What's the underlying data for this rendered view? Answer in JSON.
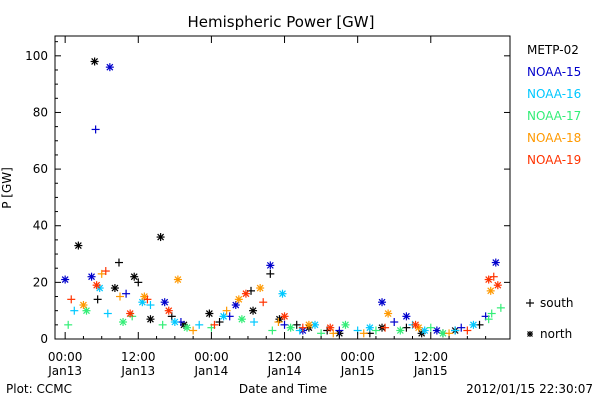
{
  "chart_data": {
    "type": "scatter",
    "title": "Hemispheric Power [GW]",
    "ylabel": "P [GW]",
    "xlabel": "Date and Time",
    "ylim": [
      0,
      107
    ],
    "xlim": [
      "2012-01-12T22:20",
      "2012-01-16T01:00"
    ],
    "y_ticks": [
      "0",
      "20",
      "40",
      "60",
      "80",
      "100"
    ],
    "x_ticks": [
      {
        "time": "00:00",
        "date": "Jan13"
      },
      {
        "time": "12:00",
        "date": "Jan13"
      },
      {
        "time": "00:00",
        "date": "Jan14"
      },
      {
        "time": "12:00",
        "date": "Jan14"
      },
      {
        "time": "00:00",
        "date": "Jan15"
      },
      {
        "time": "12:00",
        "date": "Jan15"
      }
    ],
    "marker_legend": [
      {
        "symbol": "+",
        "label": "south"
      },
      {
        "symbol": "*",
        "label": "north"
      }
    ],
    "series": [
      {
        "name": "METP-02",
        "color": "#000000",
        "north": [
          [
            "2012-01-13T04:50",
            98
          ],
          [
            "2012-01-13T02:10",
            33
          ],
          [
            "2012-01-13T15:40",
            36
          ],
          [
            "2012-01-13T11:20",
            22
          ],
          [
            "2012-01-13T08:10",
            18
          ],
          [
            "2012-01-13T14:00",
            7
          ],
          [
            "2012-01-13T19:30",
            5
          ],
          [
            "2012-01-13T23:40",
            9
          ],
          [
            "2012-01-14T06:50",
            10
          ],
          [
            "2012-01-14T11:10",
            7
          ],
          [
            "2012-01-14T16:00",
            4
          ],
          [
            "2012-01-14T21:00",
            2
          ],
          [
            "2012-01-15T04:00",
            4
          ],
          [
            "2012-01-15T10:30",
            2
          ],
          [
            "2012-01-15T16:00",
            3
          ]
        ],
        "south": [
          [
            "2012-01-13T08:50",
            27
          ],
          [
            "2012-01-13T12:00",
            20
          ],
          [
            "2012-01-13T05:20",
            14
          ],
          [
            "2012-01-13T17:30",
            8
          ],
          [
            "2012-01-14T01:20",
            6
          ],
          [
            "2012-01-14T06:30",
            17
          ],
          [
            "2012-01-14T09:40",
            23
          ],
          [
            "2012-01-14T14:00",
            5
          ],
          [
            "2012-01-14T19:00",
            3
          ],
          [
            "2012-01-15T02:00",
            2
          ],
          [
            "2012-01-15T08:00",
            4
          ],
          [
            "2012-01-15T14:00",
            2
          ],
          [
            "2012-01-15T20:00",
            5
          ]
        ]
      },
      {
        "name": "NOAA-15",
        "color": "#0000cc",
        "north": [
          [
            "2012-01-13T07:20",
            96
          ],
          [
            "2012-01-13T04:20",
            22
          ],
          [
            "2012-01-13T00:00",
            21
          ],
          [
            "2012-01-13T16:20",
            13
          ],
          [
            "2012-01-14T04:00",
            12
          ],
          [
            "2012-01-14T09:40",
            26
          ],
          [
            "2012-01-15T04:00",
            13
          ],
          [
            "2012-01-15T08:00",
            8
          ],
          [
            "2012-01-15T22:40",
            27
          ],
          [
            "2012-01-14T15:00",
            3
          ],
          [
            "2012-01-15T13:00",
            3
          ]
        ],
        "south": [
          [
            "2012-01-13T05:00",
            74
          ],
          [
            "2012-01-13T10:00",
            16
          ],
          [
            "2012-01-13T19:00",
            6
          ],
          [
            "2012-01-14T03:00",
            8
          ],
          [
            "2012-01-14T12:00",
            5
          ],
          [
            "2012-01-14T21:00",
            3
          ],
          [
            "2012-01-15T06:00",
            6
          ],
          [
            "2012-01-15T17:00",
            4
          ],
          [
            "2012-01-15T21:00",
            8
          ]
        ]
      },
      {
        "name": "NOAA-16",
        "color": "#00c8ff",
        "north": [
          [
            "2012-01-13T05:40",
            18
          ],
          [
            "2012-01-13T12:40",
            13
          ],
          [
            "2012-01-13T18:00",
            6
          ],
          [
            "2012-01-14T02:00",
            8
          ],
          [
            "2012-01-14T11:40",
            16
          ],
          [
            "2012-01-14T17:00",
            5
          ],
          [
            "2012-01-15T02:00",
            4
          ],
          [
            "2012-01-15T11:00",
            3
          ],
          [
            "2012-01-15T19:00",
            5
          ]
        ],
        "south": [
          [
            "2012-01-13T01:30",
            10
          ],
          [
            "2012-01-13T07:00",
            9
          ],
          [
            "2012-01-13T14:00",
            12
          ],
          [
            "2012-01-13T22:00",
            5
          ],
          [
            "2012-01-14T07:00",
            6
          ],
          [
            "2012-01-14T14:30",
            3
          ],
          [
            "2012-01-15T00:00",
            3
          ],
          [
            "2012-01-15T09:00",
            5
          ],
          [
            "2012-01-15T16:00",
            3
          ]
        ]
      },
      {
        "name": "NOAA-17",
        "color": "#33ee77",
        "north": [
          [
            "2012-01-13T03:30",
            10
          ],
          [
            "2012-01-13T09:30",
            6
          ],
          [
            "2012-01-13T20:00",
            4
          ],
          [
            "2012-01-14T05:00",
            7
          ],
          [
            "2012-01-14T13:00",
            4
          ],
          [
            "2012-01-14T22:00",
            5
          ],
          [
            "2012-01-15T07:00",
            3
          ],
          [
            "2012-01-15T14:00",
            2
          ]
        ],
        "south": [
          [
            "2012-01-13T00:30",
            5
          ],
          [
            "2012-01-13T11:00",
            8
          ],
          [
            "2012-01-13T16:00",
            5
          ],
          [
            "2012-01-14T00:00",
            4
          ],
          [
            "2012-01-14T10:00",
            3
          ],
          [
            "2012-01-14T18:00",
            2
          ],
          [
            "2012-01-15T03:00",
            3
          ],
          [
            "2012-01-15T12:00",
            4
          ],
          [
            "2012-01-15T22:00",
            9
          ],
          [
            "2012-01-15T23:30",
            11
          ],
          [
            "2012-01-15T21:30",
            7
          ]
        ]
      },
      {
        "name": "NOAA-18",
        "color": "#ff9900",
        "north": [
          [
            "2012-01-13T18:30",
            21
          ],
          [
            "2012-01-13T03:00",
            12
          ],
          [
            "2012-01-13T13:00",
            15
          ],
          [
            "2012-01-14T08:00",
            18
          ],
          [
            "2012-01-14T04:30",
            14
          ],
          [
            "2012-01-14T16:00",
            5
          ],
          [
            "2012-01-15T05:00",
            9
          ],
          [
            "2012-01-15T10:00",
            4
          ],
          [
            "2012-01-15T21:50",
            17
          ]
        ],
        "south": [
          [
            "2012-01-13T06:00",
            23
          ],
          [
            "2012-01-13T09:00",
            15
          ],
          [
            "2012-01-13T21:00",
            3
          ],
          [
            "2012-01-14T02:30",
            10
          ],
          [
            "2012-01-14T11:00",
            6
          ],
          [
            "2012-01-14T20:00",
            2
          ],
          [
            "2012-01-15T01:00",
            2
          ],
          [
            "2012-01-15T15:00",
            2
          ]
        ]
      },
      {
        "name": "NOAA-19",
        "color": "#ff3300",
        "north": [
          [
            "2012-01-13T05:10",
            19
          ],
          [
            "2012-01-13T10:40",
            9
          ],
          [
            "2012-01-13T17:00",
            10
          ],
          [
            "2012-01-14T05:40",
            16
          ],
          [
            "2012-01-14T12:00",
            8
          ],
          [
            "2012-01-14T19:30",
            4
          ],
          [
            "2012-01-15T09:30",
            5
          ],
          [
            "2012-01-15T21:30",
            21
          ],
          [
            "2012-01-15T23:00",
            19
          ]
        ],
        "south": [
          [
            "2012-01-13T01:00",
            14
          ],
          [
            "2012-01-13T06:40",
            24
          ],
          [
            "2012-01-13T13:30",
            14
          ],
          [
            "2012-01-14T00:30",
            5
          ],
          [
            "2012-01-14T08:30",
            13
          ],
          [
            "2012-01-14T15:00",
            4
          ],
          [
            "2012-01-15T04:30",
            4
          ],
          [
            "2012-01-15T18:00",
            3
          ],
          [
            "2012-01-15T22:20",
            22
          ]
        ]
      }
    ]
  },
  "footer": {
    "plot_credit": "Plot: CCMC",
    "timestamp": "2012/01/15 22:30:07"
  }
}
